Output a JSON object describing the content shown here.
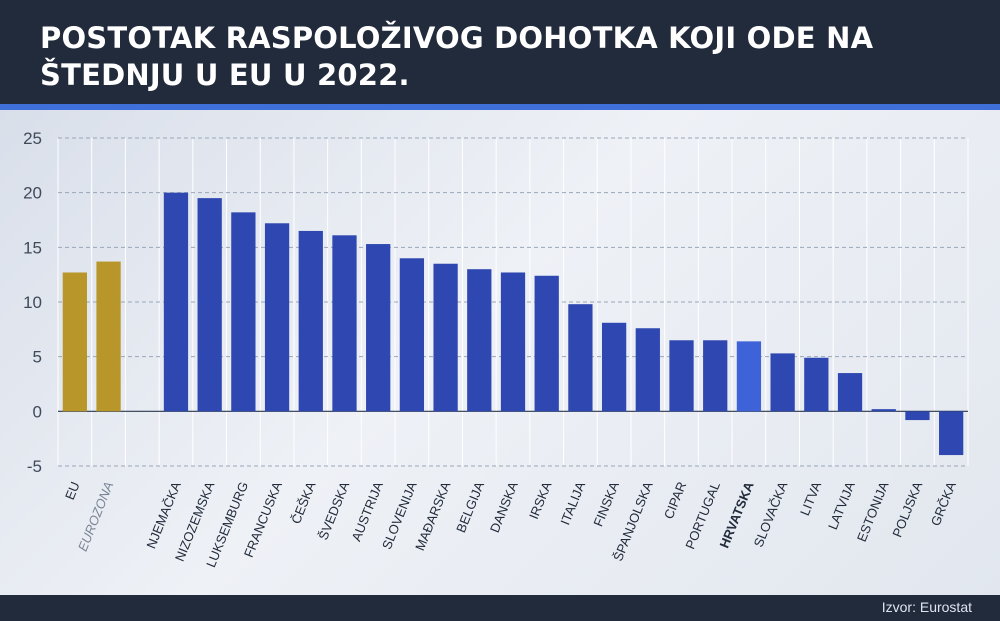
{
  "header": {
    "title": "POSTOTAK RASPOLOŽIVOG DOHOTKA KOJI ODE NA ŠTEDNJU U EU U 2022."
  },
  "footer": {
    "source": "Izvor: Eurostat"
  },
  "colors": {
    "aggregate": "#b8962a",
    "country": "#2f47b0",
    "highlight": "#3e63d8",
    "header": "#222b3b",
    "accent": "#3f6fd8"
  },
  "chart_data": {
    "type": "bar",
    "title": "POSTOTAK RASPOLOŽIVOG DOHOTKA KOJI ODE NA ŠTEDNJU U EU U 2022.",
    "xlabel": "",
    "ylabel": "",
    "ylim": [
      -5,
      25
    ],
    "yticks": [
      -5,
      0,
      5,
      10,
      15,
      20,
      25
    ],
    "grid": true,
    "categories": [
      "EU",
      "EUROZONA",
      "",
      "NJEMAČKA",
      "NIZOZEMSKA",
      "LUKSEMBURG",
      "FRANCUSKA",
      "ČEŠKA",
      "ŠVEDSKA",
      "AUSTRIJA",
      "SLOVENIJA",
      "MAĐARSKA",
      "BELGIJA",
      "DANSKA",
      "IRSKA",
      "ITALIJA",
      "FINSKA",
      "ŠPANJOLSKA",
      "CIPAR",
      "PORTUGAL",
      "HRVATSKA",
      "SLOVAČKA",
      "LITVA",
      "LATVIJA",
      "ESTONIJA",
      "POLJSKA",
      "GRČKA"
    ],
    "values": [
      12.7,
      13.7,
      null,
      20.0,
      19.5,
      18.2,
      17.2,
      16.5,
      16.1,
      15.3,
      14.0,
      13.5,
      13.0,
      12.7,
      12.4,
      9.8,
      8.1,
      7.6,
      6.5,
      6.5,
      6.4,
      5.3,
      4.9,
      3.5,
      0.2,
      -0.8,
      -4.0
    ],
    "groups": [
      "aggregate",
      "aggregate",
      "gap",
      "country",
      "country",
      "country",
      "country",
      "country",
      "country",
      "country",
      "country",
      "country",
      "country",
      "country",
      "country",
      "country",
      "country",
      "country",
      "country",
      "country",
      "highlight",
      "country",
      "country",
      "country",
      "country",
      "country",
      "country"
    ],
    "highlight": "HRVATSKA",
    "italic_labels": [
      "EUROZONA"
    ]
  }
}
